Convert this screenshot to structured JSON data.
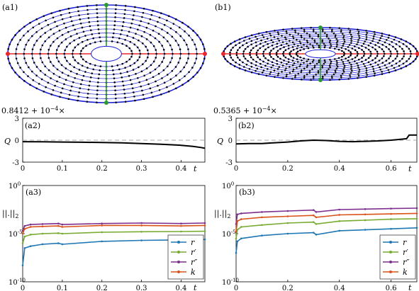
{
  "figure": {
    "a1": {
      "label": "(a1)",
      "ellipse_aspect": 0.52,
      "rings": 10
    },
    "b1": {
      "label": "(b1)",
      "ellipse_aspect": 0.28,
      "rings": 12
    },
    "a2": {
      "label": "(a2)",
      "prefix": "0.8412 + 10",
      "prefix_exp": "−4",
      "prefix_suffix": "×",
      "ylabel": "Q",
      "xlabel": "t"
    },
    "b2": {
      "label": "(b2)",
      "prefix": "0.5365 + 10",
      "prefix_exp": "−4",
      "prefix_suffix": "×",
      "ylabel": "Q",
      "xlabel": "t"
    },
    "a3": {
      "label": "(a3)",
      "ylabel": "||.||",
      "ylabel_sub": "2",
      "xlabel": "t"
    },
    "b3": {
      "label": "(b3)",
      "ylabel": "||.||",
      "ylabel_sub": "2",
      "xlabel": "t"
    },
    "legend": [
      {
        "name": "r",
        "sup": "",
        "color": "#1f77b4"
      },
      {
        "name": "r",
        "sup": "′",
        "color": "#77ac30"
      },
      {
        "name": "r",
        "sup": "″",
        "color": "#7e2f8e"
      },
      {
        "name": "k",
        "sup": "",
        "color": "#d95319"
      }
    ]
  },
  "chart_data": [
    {
      "type": "line",
      "panel": "a2",
      "xlim": [
        0,
        0.46
      ],
      "ylim": [
        -3,
        3
      ],
      "xticks": [
        0,
        0.1,
        0.2,
        0.3,
        0.4
      ],
      "xtick_labels": [
        "0",
        "0.1",
        "0.2",
        "0.3",
        "0.4"
      ],
      "yticks": [
        -3,
        0,
        3
      ],
      "ytick_labels": [
        "-3",
        "0",
        "3"
      ],
      "reference_line": 0,
      "series": [
        {
          "x": [
            0,
            0.05,
            0.1,
            0.15,
            0.2,
            0.25,
            0.3,
            0.35,
            0.4,
            0.43,
            0.45,
            0.46
          ],
          "y": [
            -0.2,
            -0.22,
            -0.25,
            -0.28,
            -0.32,
            -0.37,
            -0.45,
            -0.55,
            -0.7,
            -0.85,
            -1.0,
            -1.1
          ]
        }
      ]
    },
    {
      "type": "line",
      "panel": "b2",
      "xlim": [
        0,
        0.7
      ],
      "ylim": [
        -3,
        3
      ],
      "xticks": [
        0,
        0.2,
        0.4,
        0.6
      ],
      "xtick_labels": [
        "0",
        "0.2",
        "0.4",
        "0.6"
      ],
      "yticks": [
        -3,
        0,
        3
      ],
      "ytick_labels": [
        "-3",
        "0",
        "3"
      ],
      "reference_line": 0,
      "series": [
        {
          "x": [
            0,
            0.05,
            0.1,
            0.15,
            0.2,
            0.25,
            0.3,
            0.35,
            0.4,
            0.45,
            0.5,
            0.55,
            0.6,
            0.63,
            0.66,
            0.67,
            0.7
          ],
          "y": [
            -0.5,
            -0.45,
            -0.45,
            -0.35,
            -0.25,
            -0.1,
            0.0,
            -0.05,
            -0.15,
            -0.2,
            -0.15,
            -0.1,
            0.0,
            0.1,
            0.2,
            0.7,
            0.7
          ]
        }
      ]
    },
    {
      "type": "line",
      "panel": "a3",
      "y_scale": "log",
      "xlim": [
        0,
        0.46
      ],
      "ylim": [
        1e-10,
        1
      ],
      "xticks": [
        0,
        0.1,
        0.2,
        0.3,
        0.4
      ],
      "xtick_labels": [
        "0",
        "0.1",
        "0.2",
        "0.3",
        "0.4"
      ],
      "yticks_exp": [
        0,
        -5,
        -10
      ],
      "ytick_base": "10",
      "ytick_exp_labels": [
        "0",
        "-5",
        "-10"
      ],
      "legend_position": "bottom-right",
      "series": [
        {
          "name": "r",
          "x": [
            0,
            0.005,
            0.02,
            0.05,
            0.09,
            0.1,
            0.2,
            0.3,
            0.4,
            0.46
          ],
          "log10_y": [
            -8.3,
            -6.5,
            -6.3,
            -6.1,
            -6.0,
            -6.1,
            -5.8,
            -5.7,
            -5.65,
            -5.6
          ]
        },
        {
          "name": "r′",
          "x": [
            0,
            0.005,
            0.02,
            0.05,
            0.09,
            0.1,
            0.2,
            0.3,
            0.4,
            0.46
          ],
          "log10_y": [
            -6.0,
            -5.3,
            -5.1,
            -5.0,
            -4.95,
            -5.0,
            -4.85,
            -4.8,
            -4.78,
            -4.75
          ]
        },
        {
          "name": "r″",
          "x": [
            0,
            0.005,
            0.02,
            0.05,
            0.09,
            0.1,
            0.2,
            0.3,
            0.4,
            0.46
          ],
          "log10_y": [
            -4.7,
            -4.2,
            -4.05,
            -4.0,
            -3.95,
            -4.05,
            -3.95,
            -3.9,
            -3.95,
            -3.9
          ]
        },
        {
          "name": "k",
          "x": [
            0,
            0.005,
            0.02,
            0.05,
            0.09,
            0.1,
            0.2,
            0.3,
            0.4,
            0.46
          ],
          "log10_y": [
            -5.0,
            -4.5,
            -4.3,
            -4.25,
            -4.2,
            -4.3,
            -4.15,
            -4.15,
            -4.2,
            -4.15
          ]
        }
      ]
    },
    {
      "type": "line",
      "panel": "b3",
      "y_scale": "log",
      "xlim": [
        0,
        0.7
      ],
      "ylim": [
        1e-10,
        1
      ],
      "xticks": [
        0,
        0.2,
        0.4,
        0.6
      ],
      "xtick_labels": [
        "0",
        "0.2",
        "0.4",
        "0.6"
      ],
      "yticks_exp": [
        0,
        -5,
        -10
      ],
      "ytick_base": "10",
      "ytick_exp_labels": [
        "0",
        "-5",
        "-10"
      ],
      "legend_position": "bottom-right",
      "series": [
        {
          "name": "r",
          "x": [
            0,
            0.005,
            0.02,
            0.1,
            0.2,
            0.3,
            0.31,
            0.4,
            0.5,
            0.6,
            0.7
          ],
          "log10_y": [
            -7.0,
            -5.8,
            -5.5,
            -5.2,
            -5.0,
            -4.9,
            -5.1,
            -4.7,
            -4.6,
            -4.5,
            -4.4
          ]
        },
        {
          "name": "r′",
          "x": [
            0,
            0.005,
            0.02,
            0.1,
            0.2,
            0.3,
            0.31,
            0.4,
            0.5,
            0.6,
            0.7
          ],
          "log10_y": [
            -5.5,
            -4.6,
            -4.3,
            -4.1,
            -3.9,
            -3.8,
            -4.0,
            -3.7,
            -3.6,
            -3.5,
            -3.45
          ]
        },
        {
          "name": "r″",
          "x": [
            0,
            0.005,
            0.02,
            0.1,
            0.2,
            0.3,
            0.31,
            0.4,
            0.5,
            0.6,
            0.7
          ],
          "log10_y": [
            -4.0,
            -3.0,
            -2.9,
            -2.75,
            -2.65,
            -2.55,
            -2.75,
            -2.5,
            -2.45,
            -2.4,
            -2.35
          ]
        },
        {
          "name": "k",
          "x": [
            0,
            0.005,
            0.02,
            0.1,
            0.2,
            0.3,
            0.31,
            0.4,
            0.5,
            0.6,
            0.7
          ],
          "log10_y": [
            -4.8,
            -3.7,
            -3.5,
            -3.3,
            -3.2,
            -3.1,
            -3.3,
            -3.05,
            -3.0,
            -2.95,
            -2.9
          ]
        }
      ]
    }
  ]
}
